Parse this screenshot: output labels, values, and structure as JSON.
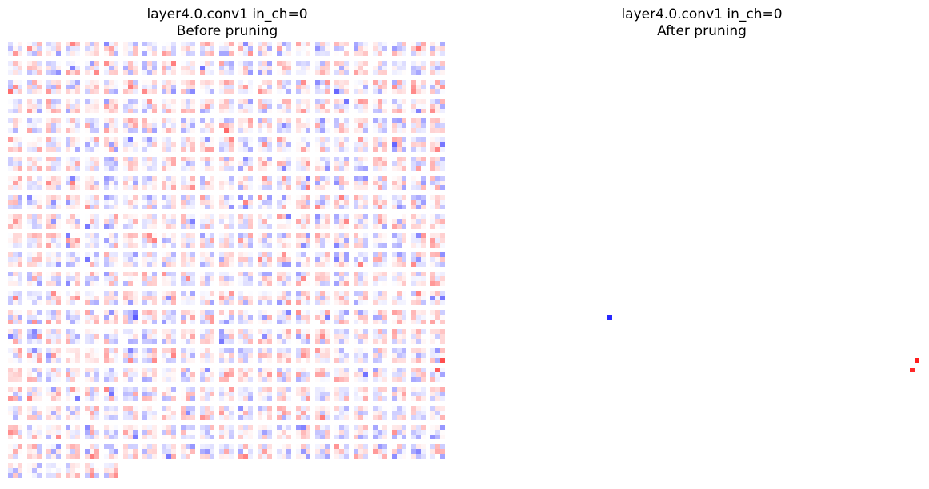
{
  "panels": [
    {
      "id": "before",
      "title_line1": "layer4.0.conv1 in_ch=0",
      "title_line2": "Before pruning"
    },
    {
      "id": "after",
      "title_line1": "layer4.0.conv1 in_ch=0",
      "title_line2": "After pruning"
    }
  ],
  "chart_data": [
    {
      "type": "heatmap",
      "title": "layer4.0.conv1 in_ch=0 Before pruning",
      "xlabel": "",
      "ylabel": "",
      "grid": false,
      "axes_visible": false,
      "colormap": "bwr",
      "color_low": "#0000ff",
      "color_mid": "#ffffff",
      "color_high": "#ff0000",
      "kernel_shape": [
        3,
        3
      ],
      "tiles_per_row": 23,
      "num_kernels": 512,
      "value_range": [
        -1,
        1
      ],
      "values": "approximate 3x3 conv kernel weights (dense; many small-magnitude values)"
    },
    {
      "type": "heatmap",
      "title": "layer4.0.conv1 in_ch=0 After pruning",
      "xlabel": "",
      "ylabel": "",
      "grid": false,
      "axes_visible": false,
      "colormap": "bwr",
      "color_low": "#0000ff",
      "color_mid": "#ffffff",
      "color_high": "#ff0000",
      "kernel_shape": [
        3,
        3
      ],
      "tiles_per_row": 23,
      "num_kernels": 512,
      "value_range": [
        -1,
        1
      ],
      "values": "approximate pruned kernel weights (sparse; most weights zeroed)"
    }
  ]
}
